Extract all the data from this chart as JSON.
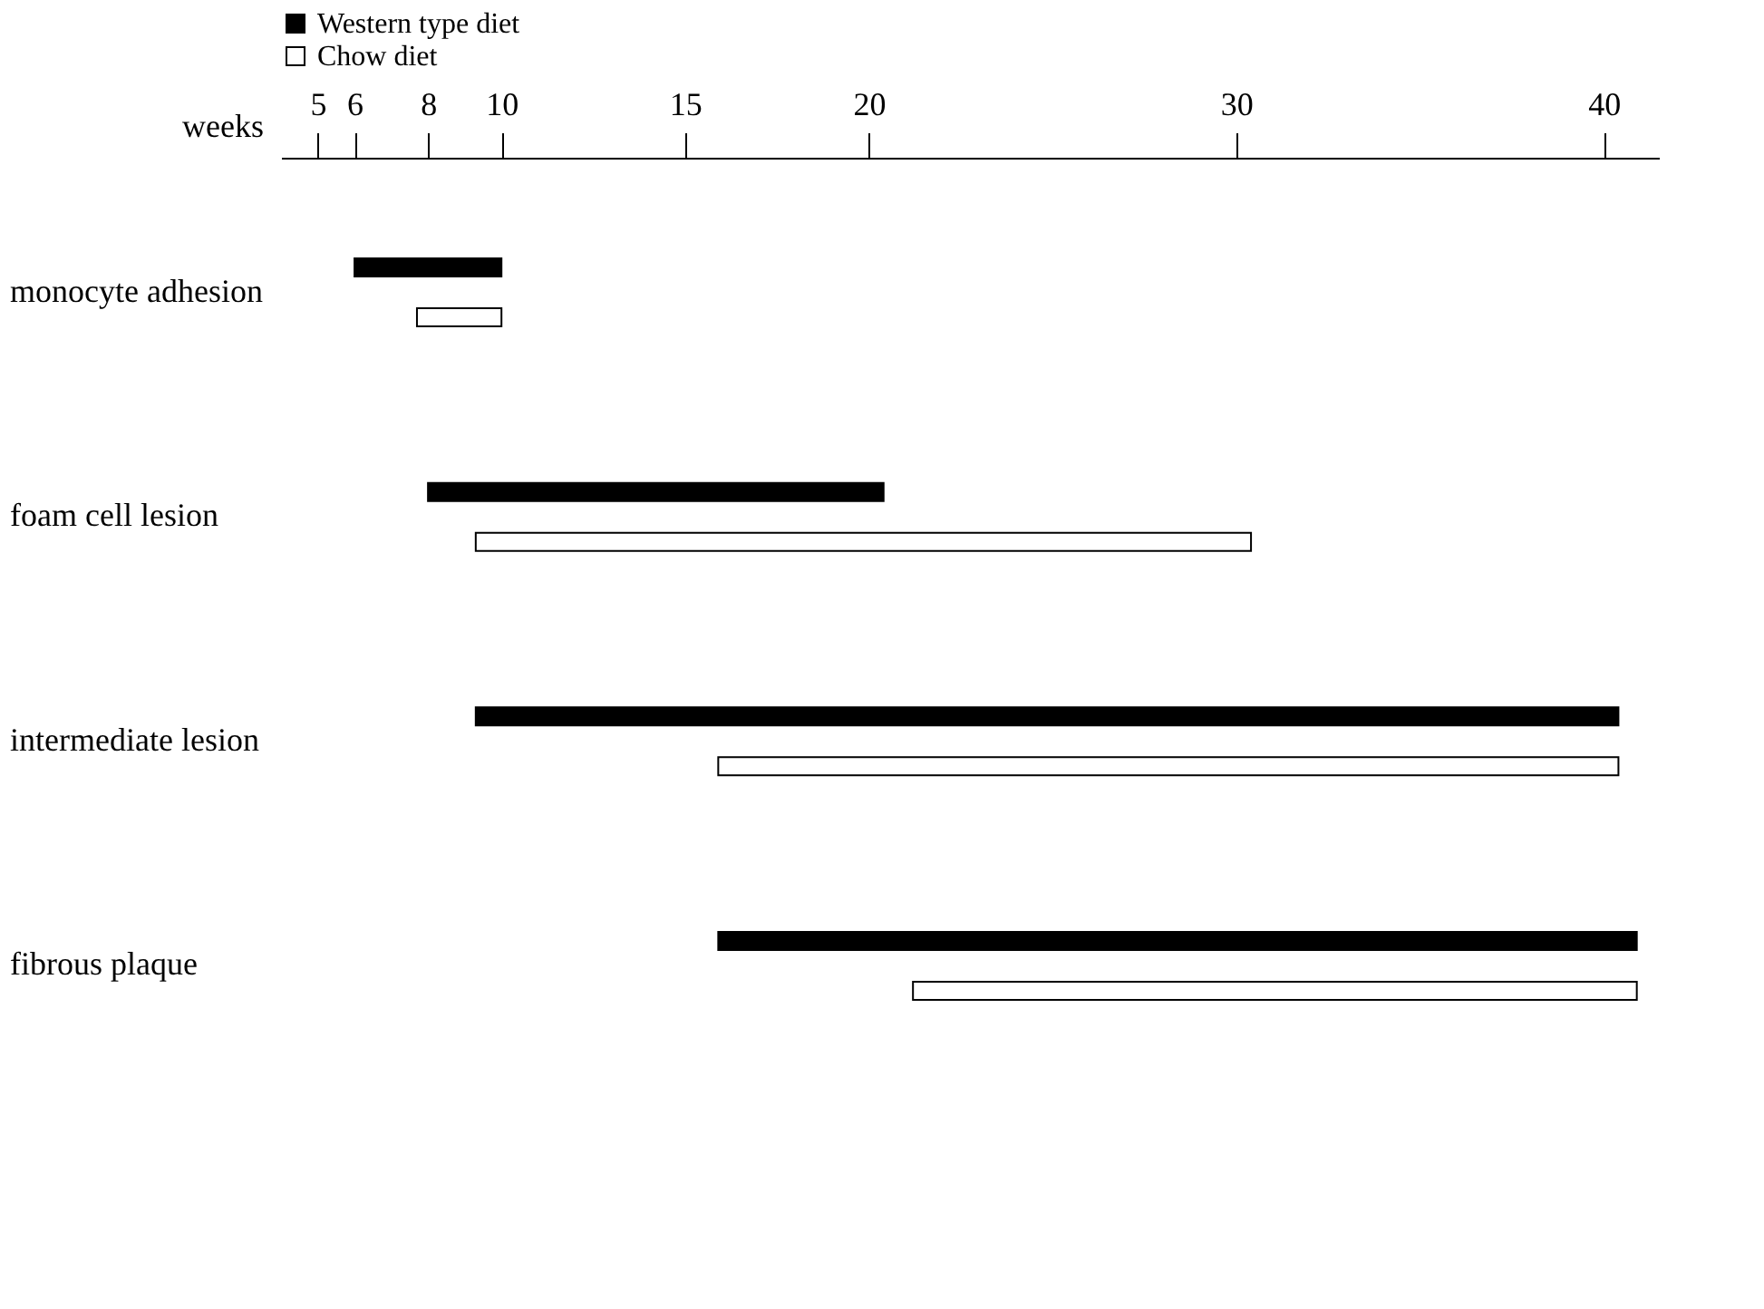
{
  "chart_data": {
    "type": "bar",
    "orientation": "horizontal",
    "xlabel": "weeks",
    "categories": [
      "monocyte adhesion",
      "foam cell lesion",
      "intermediate lesion",
      "fibrous plaque"
    ],
    "series": [
      {
        "name": "Western type diet",
        "color": "#000000",
        "base": [
          6,
          8,
          9.3,
          15.9
        ],
        "values": [
          4,
          12.4,
          31.1,
          25
        ]
      },
      {
        "name": "Chow diet",
        "color": "#ffffff",
        "base": [
          7.7,
          9.3,
          15.9,
          21.2
        ],
        "values": [
          2.3,
          21.1,
          24.5,
          19.7
        ]
      }
    ],
    "xlim": [
      4,
      41.5
    ],
    "xticks": [
      5,
      6,
      8,
      10,
      15,
      20,
      30,
      40
    ],
    "grid": false,
    "legend": "top left"
  }
}
